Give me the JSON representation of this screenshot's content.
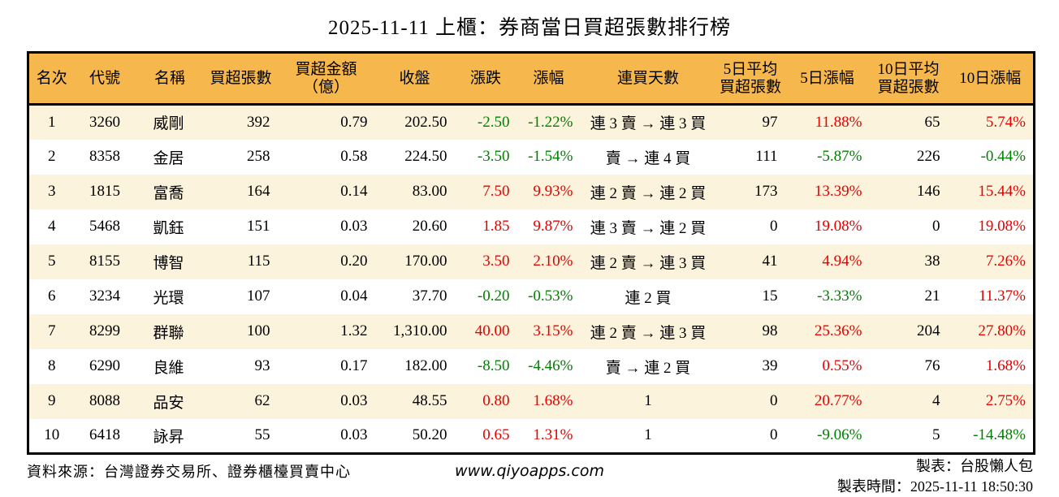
{
  "title": "2025-11-11 上櫃：券商當日買超張數排行榜",
  "colors": {
    "up_red": "#e60000",
    "down_green": "#008000",
    "header_bg": "#f6b84d",
    "stripe_bg": "#fcf3dc",
    "border": "#000000",
    "background": "#ffffff"
  },
  "chart_data": {
    "type": "table",
    "title": "2025-11-11 上櫃：券商當日買超張數排行榜",
    "columns": [
      "名次",
      "代號",
      "名稱",
      "買超張數",
      "買超金額\n（億）",
      "收盤",
      "漲跌",
      "漲幅",
      "連買天數",
      "5日平均\n買超張數",
      "5日漲幅",
      "10日平均\n買超張數",
      "10日漲幅"
    ],
    "rows": [
      [
        "1",
        "3260",
        "威剛",
        "392",
        "0.79",
        "202.50",
        "-2.50",
        "-1.22%",
        "連 3 賣 → 連 3 買",
        "97",
        "11.88%",
        "65",
        "5.74%"
      ],
      [
        "2",
        "8358",
        "金居",
        "258",
        "0.58",
        "224.50",
        "-3.50",
        "-1.54%",
        "賣 → 連 4 買",
        "111",
        "-5.87%",
        "226",
        "-0.44%"
      ],
      [
        "3",
        "1815",
        "富喬",
        "164",
        "0.14",
        "83.00",
        "7.50",
        "9.93%",
        "連 2 賣 → 連 2 買",
        "173",
        "13.39%",
        "146",
        "15.44%"
      ],
      [
        "4",
        "5468",
        "凱鈺",
        "151",
        "0.03",
        "20.60",
        "1.85",
        "9.87%",
        "連 3 賣 → 連 2 買",
        "0",
        "19.08%",
        "0",
        "19.08%"
      ],
      [
        "5",
        "8155",
        "博智",
        "115",
        "0.20",
        "170.00",
        "3.50",
        "2.10%",
        "連 2 賣 → 連 3 買",
        "41",
        "4.94%",
        "38",
        "7.26%"
      ],
      [
        "6",
        "3234",
        "光環",
        "107",
        "0.04",
        "37.70",
        "-0.20",
        "-0.53%",
        "連 2 買",
        "15",
        "-3.33%",
        "21",
        "11.37%"
      ],
      [
        "7",
        "8299",
        "群聯",
        "100",
        "1.32",
        "1,310.00",
        "40.00",
        "3.15%",
        "連 2 賣 → 連 3 買",
        "98",
        "25.36%",
        "204",
        "27.80%"
      ],
      [
        "8",
        "6290",
        "良維",
        "93",
        "0.17",
        "182.00",
        "-8.50",
        "-4.46%",
        "賣 → 連 2 買",
        "39",
        "0.55%",
        "76",
        "1.68%"
      ],
      [
        "9",
        "8088",
        "品安",
        "62",
        "0.03",
        "48.55",
        "0.80",
        "1.68%",
        "1",
        "0",
        "20.77%",
        "4",
        "2.75%"
      ],
      [
        "10",
        "6418",
        "詠昇",
        "55",
        "0.03",
        "50.20",
        "0.65",
        "1.31%",
        "1",
        "0",
        "-9.06%",
        "5",
        "-14.48%"
      ]
    ]
  },
  "footer": {
    "source": "資料來源：台灣證券交易所、證券櫃檯買賣中心",
    "website": "www.qiyoapps.com",
    "maker": "製表：台股懶人包",
    "made_at": "製表時間：2025-11-11 18:50:30"
  }
}
